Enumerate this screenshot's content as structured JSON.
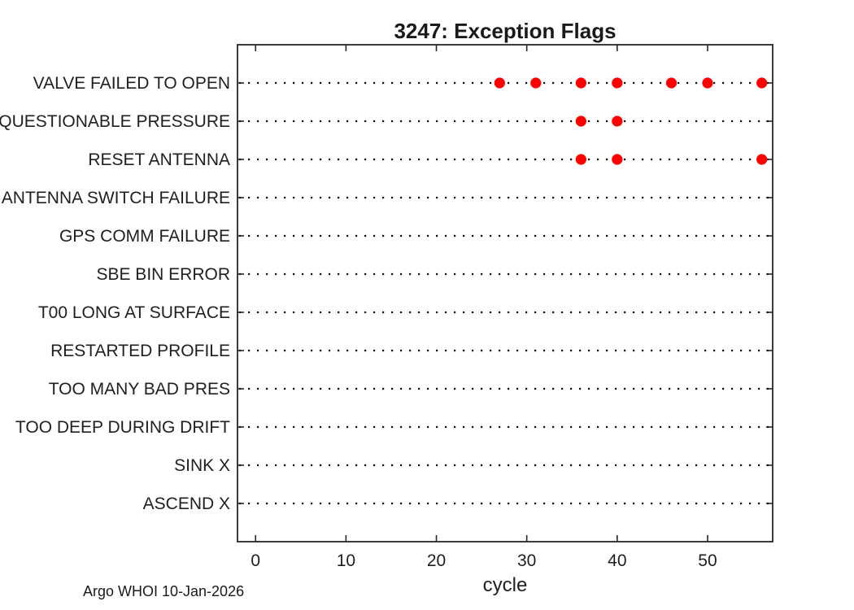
{
  "figure": {
    "title": "3247: Exception Flags",
    "footer": "Argo WHOI 10-Jan-2026"
  },
  "chart_data": {
    "type": "scatter",
    "title": "3247: Exception Flags",
    "xlabel": "cycle",
    "ylabel": "",
    "categories": [
      "VALVE FAILED TO OPEN",
      "QUESTIONABLE PRESSURE",
      "RESET ANTENNA",
      "ANTENNA SWITCH FAILURE",
      "GPS COMM FAILURE",
      "SBE BIN ERROR",
      "T00 LONG AT SURFACE",
      "RESTARTED PROFILE",
      "TOO MANY BAD PRES",
      "TOO DEEP DURING DRIFT",
      "SINK X",
      "ASCEND X"
    ],
    "series": [
      {
        "name": "VALVE FAILED TO OPEN",
        "x": [
          27,
          31,
          36,
          40,
          46,
          50,
          56
        ]
      },
      {
        "name": "QUESTIONABLE PRESSURE",
        "x": [
          36,
          40
        ]
      },
      {
        "name": "RESET ANTENNA",
        "x": [
          36,
          40,
          56
        ]
      }
    ],
    "x_ticks": [
      0,
      10,
      20,
      30,
      40,
      50
    ],
    "xlim": [
      -2,
      57.2
    ],
    "grid": "dotted horizontal line per category, full width",
    "legend": "none",
    "marker": {
      "shape": "filled-circle",
      "color": "#ff0000",
      "radius_px": 6.6
    },
    "axis_color": "#262626",
    "grid_color": "#111111",
    "annotations": [
      "Argo WHOI 10-Jan-2026"
    ]
  }
}
